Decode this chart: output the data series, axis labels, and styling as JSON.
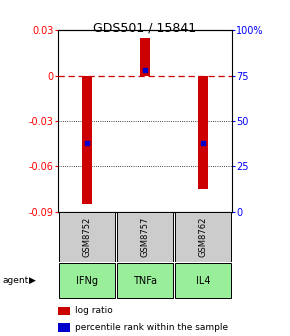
{
  "title": "GDS501 / 15841",
  "bar_positions": [
    1,
    2,
    3
  ],
  "bar_values": [
    -0.085,
    0.025,
    -0.075
  ],
  "percentile_ranks": [
    38,
    78,
    38
  ],
  "sample_labels": [
    "GSM8752",
    "GSM8757",
    "GSM8762"
  ],
  "agent_labels": [
    "IFNg",
    "TNFa",
    "IL4"
  ],
  "ylim_left": [
    -0.09,
    0.03
  ],
  "ylim_right": [
    0,
    100
  ],
  "left_yticks": [
    -0.09,
    -0.06,
    -0.03,
    0,
    0.03
  ],
  "right_yticks": [
    0,
    25,
    50,
    75,
    100
  ],
  "bar_color": "#cc0000",
  "percentile_color": "#0000cc",
  "zero_line_color": "#cc0000",
  "sample_bg": "#cccccc",
  "agent_bg": "#99ee99",
  "legend_box_red": "#cc0000",
  "legend_box_blue": "#0000cc",
  "bar_width": 0.18,
  "title_fontsize": 9,
  "tick_fontsize": 7,
  "sample_fontsize": 6,
  "agent_fontsize": 7,
  "legend_fontsize": 6.5
}
